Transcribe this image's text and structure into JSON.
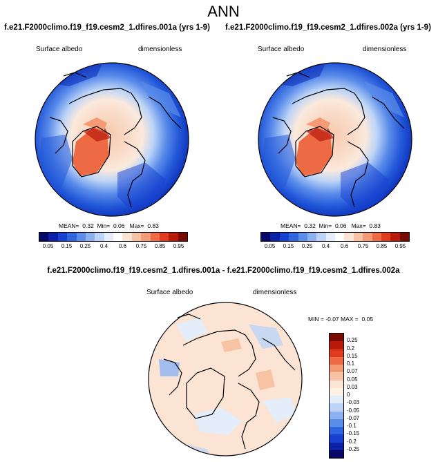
{
  "header": {
    "title": "ANN",
    "left_run": "f.e21.F2000climo.f19_f19.cesm2_1.dfires.001a (yrs 1-9)",
    "right_run": "f.e21.F2000climo.f19_f19.cesm2_1.dfires.002a (yrs 1-9)",
    "diff_title": "f.e21.F2000climo.f19_f19.cesm2_1.dfires.001a - f.e21.F2000climo.f19_f19.cesm2_1.dfires.002a"
  },
  "panels": [
    {
      "variable": "Surface albedo",
      "units": "dimensionless",
      "mean_label": "MEAN=",
      "mean": "0.32",
      "min_label": "Min=",
      "min": "0.06",
      "max_label": "Max=",
      "max": "0.83"
    },
    {
      "variable": "Surface albedo",
      "units": "dimensionless",
      "mean_label": "MEAN=",
      "mean": "0.32",
      "min_label": "Min=",
      "min": "0.06",
      "max_label": "Max=",
      "max": "0.83"
    }
  ],
  "diff_panel": {
    "variable": "Surface albedo",
    "units": "dimensionless",
    "min_label": "MIN =",
    "min": "-0.07",
    "max_label": "MAX =",
    "max": "0.05"
  },
  "colorbar_main": {
    "ticks": [
      "0.05",
      "0.15",
      "0.25",
      "0.4",
      "0.6",
      "0.75",
      "0.85",
      "0.95"
    ],
    "colors": [
      "#08086b",
      "#0a21a8",
      "#1540d0",
      "#2f66e0",
      "#5a8cea",
      "#8cb2f2",
      "#bcd4f7",
      "#e4eefb",
      "#ffffff",
      "#fbe4d4",
      "#f7c3a4",
      "#f49a74",
      "#ee6a44",
      "#e03b1c",
      "#b81a0a",
      "#7a0a04"
    ]
  },
  "colorbar_diff": {
    "ticks": [
      "0.25",
      "0.2",
      "0.15",
      "0.1",
      "0.07",
      "0.05",
      "0.03",
      "0",
      "-0.03",
      "-0.05",
      "-0.07",
      "-0.1",
      "-0.15",
      "-0.2",
      "-0.25"
    ],
    "colors": [
      "#7a0a04",
      "#b81a0a",
      "#e03b1c",
      "#ee6a44",
      "#f49a74",
      "#f7c3a4",
      "#fbe4d4",
      "#fdf1e6",
      "#e4eefb",
      "#bcd4f7",
      "#8cb2f2",
      "#5a8cea",
      "#2f66e0",
      "#1540d0",
      "#0a21a8",
      "#08086b"
    ]
  }
}
